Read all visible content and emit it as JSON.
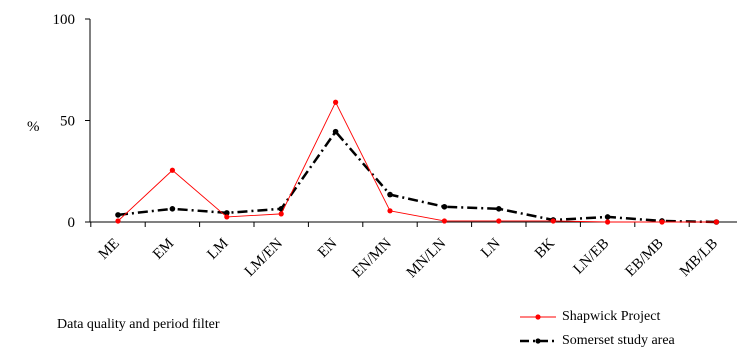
{
  "chart_data": {
    "type": "line",
    "categories": [
      "ME",
      "EM",
      "LM",
      "LM/EN",
      "EN",
      "EN/MN",
      "MN/LN",
      "LN",
      "BK",
      "LN/EB",
      "EB/MB",
      "MB/LB"
    ],
    "series": [
      {
        "name": "Shapwick Project",
        "color": "#ff0000",
        "style": "solid-with-dot-markers",
        "values": [
          0.5,
          25.5,
          2.5,
          4,
          59,
          5.5,
          0.5,
          0.5,
          0.5,
          0,
          0,
          0
        ]
      },
      {
        "name": "Somerset study area",
        "color": "#000000",
        "style": "dash-dot-with-dot-markers",
        "values": [
          3.5,
          6.5,
          4.5,
          6.5,
          44.5,
          13.5,
          7.5,
          6.5,
          1,
          2.5,
          0.5,
          0
        ]
      }
    ],
    "xlabel": "",
    "ylabel": "%",
    "ylim": [
      0,
      100
    ],
    "yticks": [
      "0",
      "50",
      "100"
    ],
    "grid": false,
    "legend": "bottom-right",
    "annotation": "Data quality and period filter"
  }
}
